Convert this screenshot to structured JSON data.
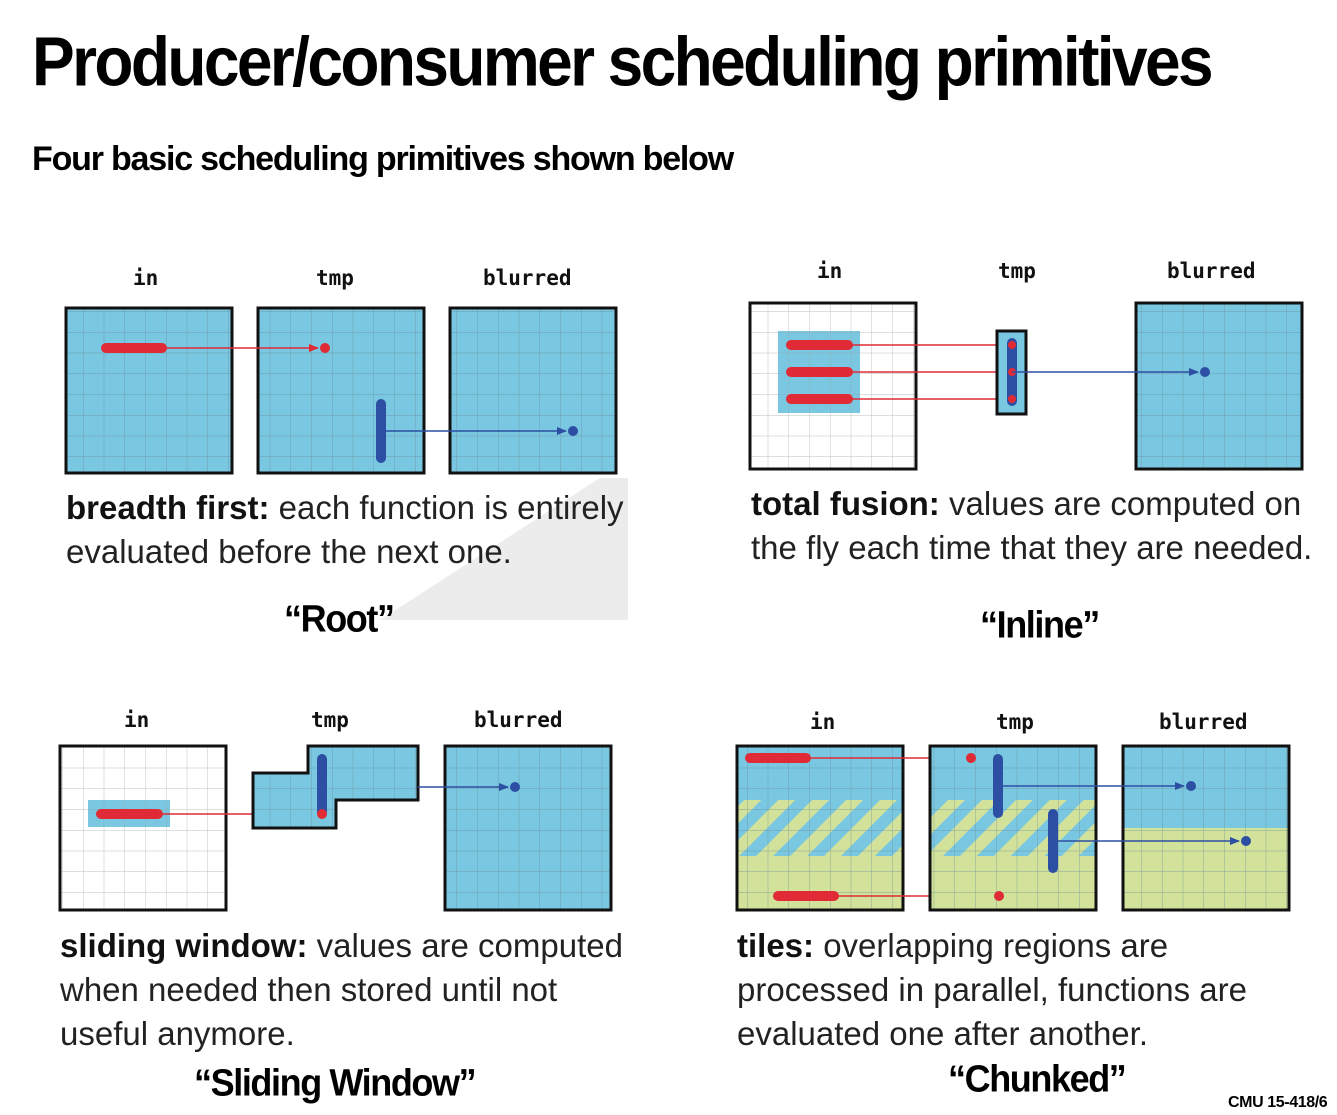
{
  "title": "Producer/consumer scheduling primitives",
  "subtitle": "Four basic scheduling primitives shown below",
  "labels": {
    "in": "in",
    "tmp": "tmp",
    "blurred": "blurred"
  },
  "panels": {
    "root": {
      "term": "breadth first:",
      "description": " each function is entirely evaluated before the next one.",
      "name": "“Root”"
    },
    "inline": {
      "term": "total fusion:",
      "description": " values are computed on the fly each time that they are needed.",
      "name": "“Inline”"
    },
    "sliding": {
      "term": "sliding window:",
      "description": " values are computed when needed then stored until not useful anymore.",
      "name": "“Sliding Window”"
    },
    "chunked": {
      "term": "tiles:",
      "description": " overlapping regions are processed in parallel, functions are evaluated one after another.",
      "name": "“Chunked”"
    }
  },
  "footer": "CMU 15-418/6",
  "colors": {
    "cell_fill": "#79c7e0",
    "grid_line": "#6c8c98",
    "producer_bar": "#e02a36",
    "consumer_bar": "#2c4fa3",
    "tile_fill": "#d2e29a",
    "outline": "#111111"
  }
}
